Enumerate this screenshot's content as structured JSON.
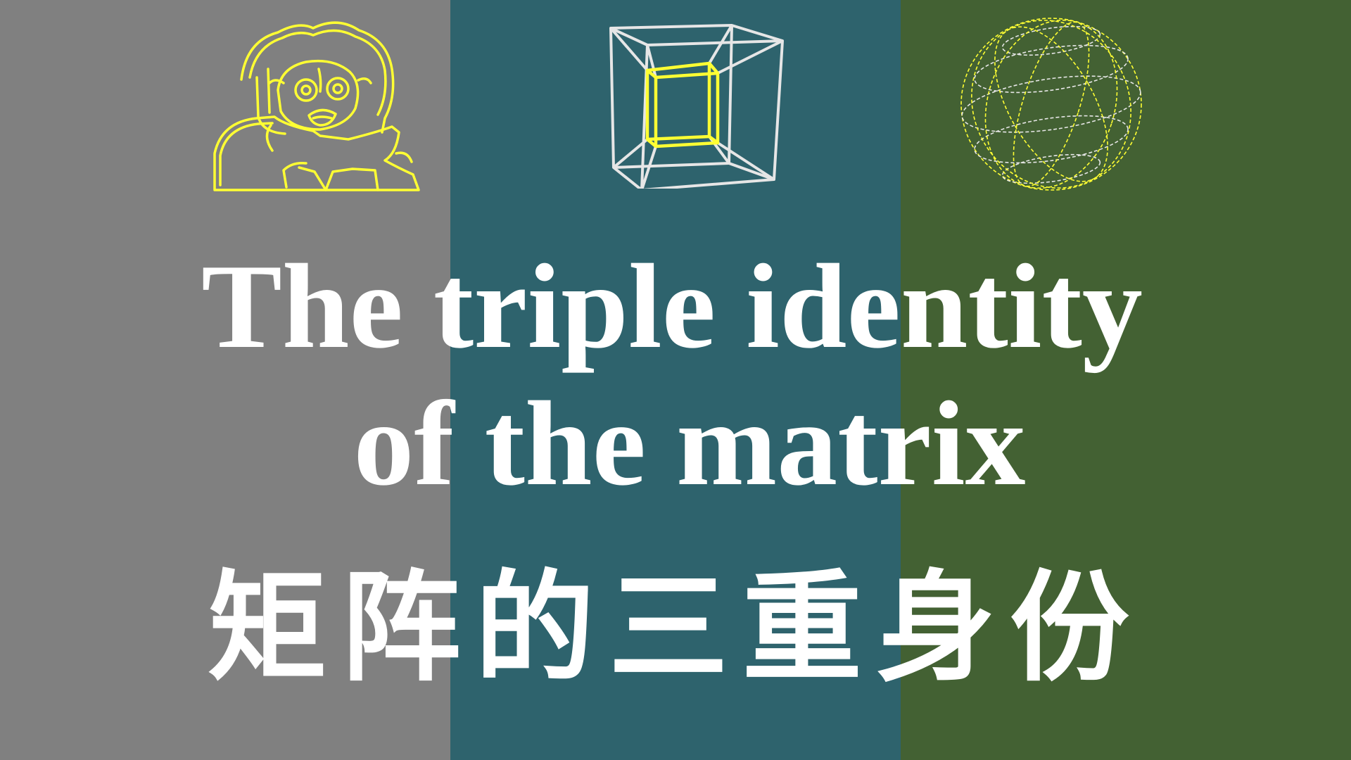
{
  "panels": {
    "left_color": "#808080",
    "middle_color": "#2e636d",
    "right_color": "#436133"
  },
  "icons": {
    "left": "cartoon-character-outline-icon",
    "middle": "tesseract-hypercube-icon",
    "right": "wireframe-sphere-icon",
    "accent_color": "#ffff33",
    "line_color": "#e6e6e6"
  },
  "title": {
    "line1": "The triple identity",
    "line2": "of the matrix",
    "zh": "矩阵的三重身份"
  }
}
